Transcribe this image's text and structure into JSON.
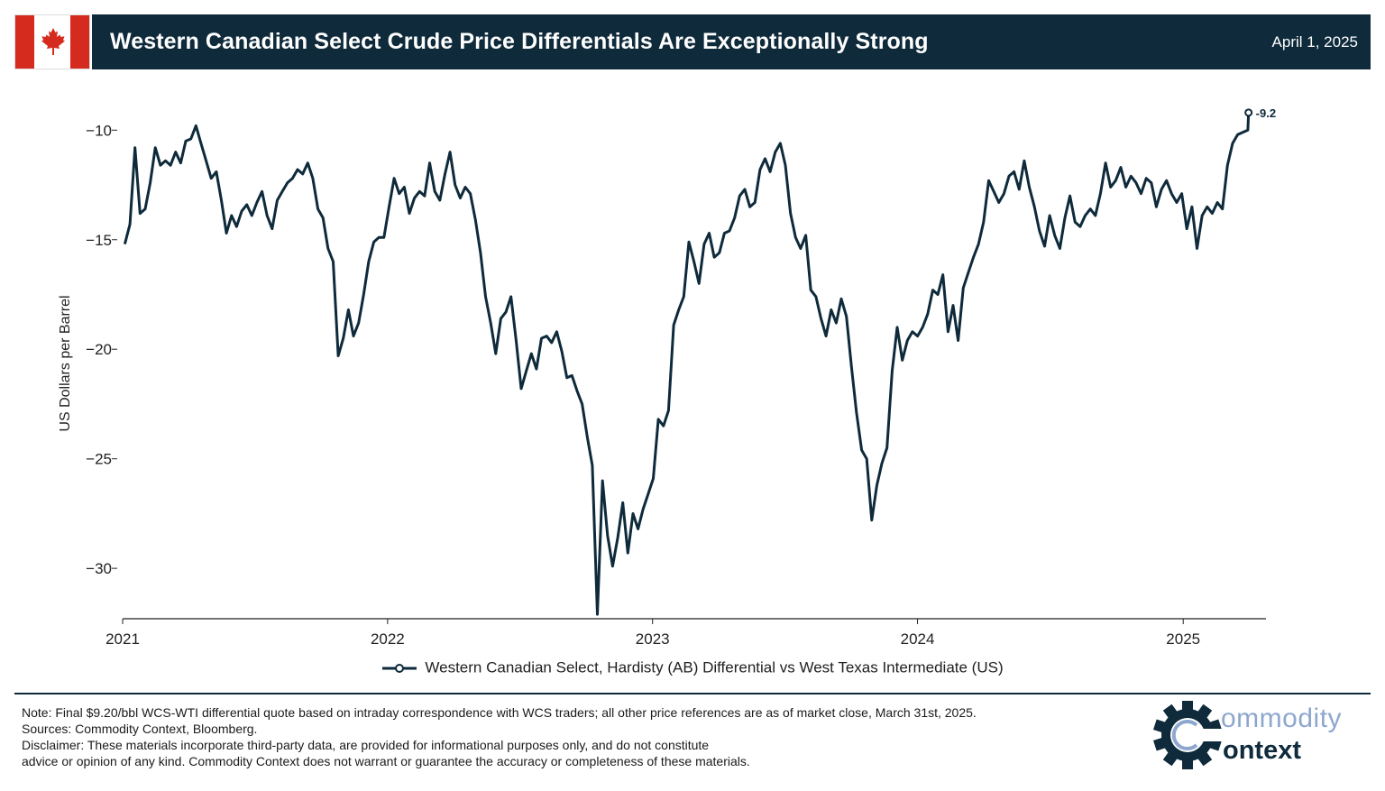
{
  "header": {
    "title": "Western Canadian Select Crude Price Differentials Are Exceptionally Strong",
    "date": "April 1, 2025"
  },
  "colors": {
    "navy": "#0e2a3b",
    "flag_red": "#d52b1e",
    "logo_blue": "#8ea7cf"
  },
  "icons": {
    "flag": "canada-flag-icon",
    "logo": "gear-c-logo-icon"
  },
  "chart_data": {
    "type": "line",
    "title": "",
    "xlabel": "",
    "ylabel": "US Dollars per Barrel",
    "xlim": [
      "2021-01-01",
      "2025-04-25"
    ],
    "ylim": [
      -32.3,
      -9.0
    ],
    "xticks": [
      "2021",
      "2022",
      "2023",
      "2024",
      "2025"
    ],
    "yticks": [
      -10,
      -15,
      -20,
      -25,
      -30
    ],
    "ytick_labels": [
      "−10",
      "−15",
      "−20",
      "−25",
      "−30"
    ],
    "grid": false,
    "legend_position": "bottom-center",
    "series": [
      {
        "name": "Western Canadian Select, Hardisty (AB) Differential vs West Texas Intermediate (US)",
        "color": "#0e2a3b",
        "end_label": "-9.2",
        "points": [
          [
            "2021-01-04",
            -15.2
          ],
          [
            "2021-01-11",
            -14.3
          ],
          [
            "2021-01-18",
            -10.8
          ],
          [
            "2021-01-25",
            -13.8
          ],
          [
            "2021-02-01",
            -13.6
          ],
          [
            "2021-02-08",
            -12.4
          ],
          [
            "2021-02-15",
            -10.8
          ],
          [
            "2021-02-22",
            -11.6
          ],
          [
            "2021-03-01",
            -11.4
          ],
          [
            "2021-03-08",
            -11.6
          ],
          [
            "2021-03-15",
            -11.0
          ],
          [
            "2021-03-22",
            -11.5
          ],
          [
            "2021-03-29",
            -10.5
          ],
          [
            "2021-04-05",
            -10.4
          ],
          [
            "2021-04-12",
            -9.8
          ],
          [
            "2021-04-19",
            -10.6
          ],
          [
            "2021-04-26",
            -11.4
          ],
          [
            "2021-05-03",
            -12.2
          ],
          [
            "2021-05-10",
            -11.9
          ],
          [
            "2021-05-17",
            -13.2
          ],
          [
            "2021-05-24",
            -14.7
          ],
          [
            "2021-05-31",
            -13.9
          ],
          [
            "2021-06-07",
            -14.4
          ],
          [
            "2021-06-14",
            -13.7
          ],
          [
            "2021-06-21",
            -13.4
          ],
          [
            "2021-06-28",
            -13.9
          ],
          [
            "2021-07-05",
            -13.3
          ],
          [
            "2021-07-12",
            -12.8
          ],
          [
            "2021-07-19",
            -13.9
          ],
          [
            "2021-07-26",
            -14.5
          ],
          [
            "2021-08-02",
            -13.2
          ],
          [
            "2021-08-09",
            -12.8
          ],
          [
            "2021-08-16",
            -12.4
          ],
          [
            "2021-08-23",
            -12.2
          ],
          [
            "2021-08-30",
            -11.8
          ],
          [
            "2021-09-06",
            -12.0
          ],
          [
            "2021-09-13",
            -11.5
          ],
          [
            "2021-09-20",
            -12.2
          ],
          [
            "2021-09-27",
            -13.6
          ],
          [
            "2021-10-04",
            -14.0
          ],
          [
            "2021-10-11",
            -15.4
          ],
          [
            "2021-10-18",
            -16.0
          ],
          [
            "2021-10-25",
            -20.3
          ],
          [
            "2021-11-01",
            -19.5
          ],
          [
            "2021-11-08",
            -18.2
          ],
          [
            "2021-11-15",
            -19.4
          ],
          [
            "2021-11-22",
            -18.8
          ],
          [
            "2021-11-29",
            -17.5
          ],
          [
            "2021-12-06",
            -16.0
          ],
          [
            "2021-12-13",
            -15.1
          ],
          [
            "2021-12-20",
            -14.9
          ],
          [
            "2021-12-27",
            -14.9
          ],
          [
            "2022-01-03",
            -13.5
          ],
          [
            "2022-01-10",
            -12.2
          ],
          [
            "2022-01-17",
            -12.9
          ],
          [
            "2022-01-24",
            -12.6
          ],
          [
            "2022-01-31",
            -13.8
          ],
          [
            "2022-02-07",
            -13.1
          ],
          [
            "2022-02-14",
            -12.8
          ],
          [
            "2022-02-21",
            -13.0
          ],
          [
            "2022-02-28",
            -11.5
          ],
          [
            "2022-03-07",
            -12.8
          ],
          [
            "2022-03-14",
            -13.2
          ],
          [
            "2022-03-21",
            -12.0
          ],
          [
            "2022-03-28",
            -11.0
          ],
          [
            "2022-04-04",
            -12.5
          ],
          [
            "2022-04-11",
            -13.1
          ],
          [
            "2022-04-18",
            -12.6
          ],
          [
            "2022-04-25",
            -12.9
          ],
          [
            "2022-05-02",
            -14.1
          ],
          [
            "2022-05-09",
            -15.6
          ],
          [
            "2022-05-16",
            -17.6
          ],
          [
            "2022-05-23",
            -18.8
          ],
          [
            "2022-05-30",
            -20.2
          ],
          [
            "2022-06-06",
            -18.6
          ],
          [
            "2022-06-13",
            -18.3
          ],
          [
            "2022-06-20",
            -17.6
          ],
          [
            "2022-06-27",
            -19.6
          ],
          [
            "2022-07-04",
            -21.8
          ],
          [
            "2022-07-11",
            -21.0
          ],
          [
            "2022-07-18",
            -20.2
          ],
          [
            "2022-07-25",
            -20.9
          ],
          [
            "2022-08-01",
            -19.5
          ],
          [
            "2022-08-08",
            -19.4
          ],
          [
            "2022-08-15",
            -19.7
          ],
          [
            "2022-08-22",
            -19.2
          ],
          [
            "2022-08-29",
            -20.1
          ],
          [
            "2022-09-05",
            -21.3
          ],
          [
            "2022-09-12",
            -21.2
          ],
          [
            "2022-09-19",
            -21.9
          ],
          [
            "2022-09-26",
            -22.5
          ],
          [
            "2022-10-03",
            -24.0
          ],
          [
            "2022-10-10",
            -25.3
          ],
          [
            "2022-10-17",
            -32.1
          ],
          [
            "2022-10-24",
            -26.0
          ],
          [
            "2022-10-31",
            -28.5
          ],
          [
            "2022-11-07",
            -29.9
          ],
          [
            "2022-11-14",
            -28.6
          ],
          [
            "2022-11-21",
            -27.0
          ],
          [
            "2022-11-28",
            -29.3
          ],
          [
            "2022-12-05",
            -27.5
          ],
          [
            "2022-12-12",
            -28.2
          ],
          [
            "2022-12-19",
            -27.3
          ],
          [
            "2022-12-26",
            -26.6
          ],
          [
            "2023-01-02",
            -25.9
          ],
          [
            "2023-01-09",
            -23.2
          ],
          [
            "2023-01-16",
            -23.5
          ],
          [
            "2023-01-23",
            -22.8
          ],
          [
            "2023-01-30",
            -18.9
          ],
          [
            "2023-02-06",
            -18.2
          ],
          [
            "2023-02-13",
            -17.6
          ],
          [
            "2023-02-20",
            -15.1
          ],
          [
            "2023-02-27",
            -16.0
          ],
          [
            "2023-03-06",
            -17.0
          ],
          [
            "2023-03-13",
            -15.2
          ],
          [
            "2023-03-20",
            -14.7
          ],
          [
            "2023-03-27",
            -15.8
          ],
          [
            "2023-04-03",
            -15.6
          ],
          [
            "2023-04-10",
            -14.7
          ],
          [
            "2023-04-17",
            -14.6
          ],
          [
            "2023-04-24",
            -14.0
          ],
          [
            "2023-05-01",
            -13.0
          ],
          [
            "2023-05-08",
            -12.7
          ],
          [
            "2023-05-15",
            -13.5
          ],
          [
            "2023-05-22",
            -13.3
          ],
          [
            "2023-05-29",
            -11.8
          ],
          [
            "2023-06-05",
            -11.3
          ],
          [
            "2023-06-12",
            -11.9
          ],
          [
            "2023-06-19",
            -11.0
          ],
          [
            "2023-06-26",
            -10.6
          ],
          [
            "2023-07-03",
            -11.6
          ],
          [
            "2023-07-10",
            -13.8
          ],
          [
            "2023-07-17",
            -14.9
          ],
          [
            "2023-07-24",
            -15.4
          ],
          [
            "2023-07-31",
            -14.8
          ],
          [
            "2023-08-07",
            -17.3
          ],
          [
            "2023-08-14",
            -17.6
          ],
          [
            "2023-08-21",
            -18.6
          ],
          [
            "2023-08-28",
            -19.4
          ],
          [
            "2023-09-04",
            -18.2
          ],
          [
            "2023-09-11",
            -18.8
          ],
          [
            "2023-09-18",
            -17.7
          ],
          [
            "2023-09-25",
            -18.5
          ],
          [
            "2023-10-02",
            -20.8
          ],
          [
            "2023-10-09",
            -22.9
          ],
          [
            "2023-10-16",
            -24.6
          ],
          [
            "2023-10-23",
            -25.0
          ],
          [
            "2023-10-30",
            -27.8
          ],
          [
            "2023-11-06",
            -26.2
          ],
          [
            "2023-11-13",
            -25.2
          ],
          [
            "2023-11-20",
            -24.5
          ],
          [
            "2023-11-27",
            -21.0
          ],
          [
            "2023-12-04",
            -19.0
          ],
          [
            "2023-12-11",
            -20.5
          ],
          [
            "2023-12-18",
            -19.6
          ],
          [
            "2023-12-25",
            -19.2
          ],
          [
            "2024-01-01",
            -19.4
          ],
          [
            "2024-01-08",
            -19.0
          ],
          [
            "2024-01-15",
            -18.4
          ],
          [
            "2024-01-22",
            -17.3
          ],
          [
            "2024-01-29",
            -17.5
          ],
          [
            "2024-02-05",
            -16.6
          ],
          [
            "2024-02-12",
            -19.2
          ],
          [
            "2024-02-19",
            -18.0
          ],
          [
            "2024-02-26",
            -19.6
          ],
          [
            "2024-03-04",
            -17.2
          ],
          [
            "2024-03-11",
            -16.5
          ],
          [
            "2024-03-18",
            -15.8
          ],
          [
            "2024-03-25",
            -15.2
          ],
          [
            "2024-04-01",
            -14.2
          ],
          [
            "2024-04-08",
            -12.3
          ],
          [
            "2024-04-15",
            -12.8
          ],
          [
            "2024-04-22",
            -13.3
          ],
          [
            "2024-04-29",
            -12.9
          ],
          [
            "2024-05-06",
            -12.1
          ],
          [
            "2024-05-13",
            -11.9
          ],
          [
            "2024-05-20",
            -12.7
          ],
          [
            "2024-05-27",
            -11.4
          ],
          [
            "2024-06-03",
            -12.6
          ],
          [
            "2024-06-10",
            -13.5
          ],
          [
            "2024-06-17",
            -14.6
          ],
          [
            "2024-06-24",
            -15.3
          ],
          [
            "2024-07-01",
            -13.9
          ],
          [
            "2024-07-08",
            -14.8
          ],
          [
            "2024-07-15",
            -15.4
          ],
          [
            "2024-07-22",
            -14.0
          ],
          [
            "2024-07-29",
            -13.0
          ],
          [
            "2024-08-05",
            -14.2
          ],
          [
            "2024-08-12",
            -14.4
          ],
          [
            "2024-08-19",
            -13.9
          ],
          [
            "2024-08-26",
            -13.6
          ],
          [
            "2024-09-02",
            -13.9
          ],
          [
            "2024-09-09",
            -12.9
          ],
          [
            "2024-09-16",
            -11.5
          ],
          [
            "2024-09-23",
            -12.6
          ],
          [
            "2024-09-30",
            -12.3
          ],
          [
            "2024-10-07",
            -11.7
          ],
          [
            "2024-10-14",
            -12.6
          ],
          [
            "2024-10-21",
            -12.1
          ],
          [
            "2024-10-28",
            -12.4
          ],
          [
            "2024-11-04",
            -12.9
          ],
          [
            "2024-11-11",
            -12.2
          ],
          [
            "2024-11-18",
            -12.4
          ],
          [
            "2024-11-25",
            -13.5
          ],
          [
            "2024-12-02",
            -12.7
          ],
          [
            "2024-12-09",
            -12.3
          ],
          [
            "2024-12-16",
            -12.9
          ],
          [
            "2024-12-23",
            -13.3
          ],
          [
            "2024-12-30",
            -12.9
          ],
          [
            "2025-01-06",
            -14.5
          ],
          [
            "2025-01-13",
            -13.5
          ],
          [
            "2025-01-20",
            -15.4
          ],
          [
            "2025-01-27",
            -13.9
          ],
          [
            "2025-02-03",
            -13.5
          ],
          [
            "2025-02-10",
            -13.8
          ],
          [
            "2025-02-17",
            -13.3
          ],
          [
            "2025-02-24",
            -13.6
          ],
          [
            "2025-03-03",
            -11.6
          ],
          [
            "2025-03-10",
            -10.6
          ],
          [
            "2025-03-17",
            -10.2
          ],
          [
            "2025-03-24",
            -10.1
          ],
          [
            "2025-03-31",
            -10.0
          ],
          [
            "2025-04-01",
            -9.2
          ]
        ]
      }
    ]
  },
  "footer": {
    "note": "Note: Final $9.20/bbl WCS-WTI differential quote based on intraday correspondence with WCS traders; all other price references are as of market close, March 31st, 2025.",
    "sources": "Sources: Commodity Context, Bloomberg.",
    "disclaimer_1": "Disclaimer: These materials incorporate third-party data, are provided for informational purposes only, and do not constitute",
    "disclaimer_2": "advice or opinion of any kind. Commodity Context does not warrant or guarantee the accuracy or completeness of these materials."
  },
  "logo": {
    "word_1": "ommodity",
    "word_2": "ontext"
  }
}
